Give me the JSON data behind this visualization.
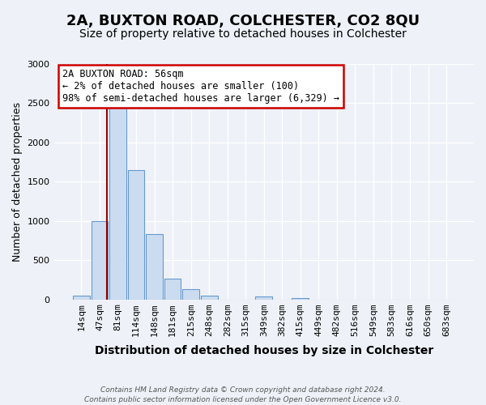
{
  "title": "2A, BUXTON ROAD, COLCHESTER, CO2 8QU",
  "subtitle": "Size of property relative to detached houses in Colchester",
  "xlabel": "Distribution of detached houses by size in Colchester",
  "ylabel": "Number of detached properties",
  "bin_labels": [
    "14sqm",
    "47sqm",
    "81sqm",
    "114sqm",
    "148sqm",
    "181sqm",
    "215sqm",
    "248sqm",
    "282sqm",
    "315sqm",
    "349sqm",
    "382sqm",
    "415sqm",
    "449sqm",
    "482sqm",
    "516sqm",
    "549sqm",
    "583sqm",
    "616sqm",
    "650sqm",
    "683sqm"
  ],
  "bar_values": [
    50,
    1000,
    2450,
    1650,
    830,
    265,
    130,
    50,
    0,
    0,
    40,
    0,
    20,
    0,
    0,
    0,
    0,
    0,
    0,
    0,
    0
  ],
  "bar_color": "#ccdcf0",
  "bar_edge_color": "#6699cc",
  "vline_x_index": 1.42,
  "vline_color": "#990000",
  "ylim": [
    0,
    3000
  ],
  "yticks": [
    0,
    500,
    1000,
    1500,
    2000,
    2500,
    3000
  ],
  "annotation_title": "2A BUXTON ROAD: 56sqm",
  "annotation_line1": "← 2% of detached houses are smaller (100)",
  "annotation_line2": "98% of semi-detached houses are larger (6,329) →",
  "annotation_box_color": "#ffffff",
  "annotation_box_edge": "#cc0000",
  "footer_line1": "Contains HM Land Registry data © Crown copyright and database right 2024.",
  "footer_line2": "Contains public sector information licensed under the Open Government Licence v3.0.",
  "bg_color": "#eef2f8",
  "grid_color": "#ffffff",
  "title_fontsize": 13,
  "subtitle_fontsize": 10,
  "ylabel_fontsize": 9,
  "xlabel_fontsize": 10,
  "tick_fontsize": 8
}
